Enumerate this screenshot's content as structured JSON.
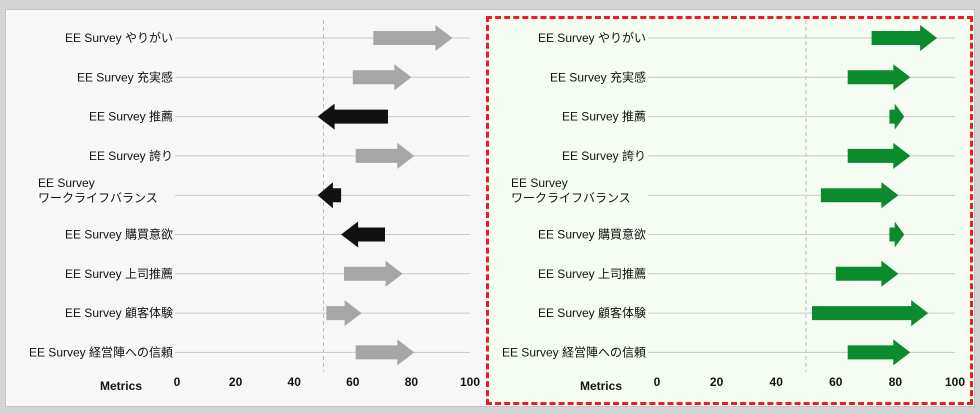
{
  "chart_data": [
    {
      "type": "arrow-range",
      "ylabel": "Metrics",
      "xlim": [
        0,
        100
      ],
      "xticks": [
        0,
        20,
        40,
        60,
        80,
        100
      ],
      "reference_x": 50,
      "categories": [
        [
          "EE Survey やりがい"
        ],
        [
          "EE Survey 充実感"
        ],
        [
          "EE Survey 推薦"
        ],
        [
          "EE Survey 誇り"
        ],
        [
          "EE Survey",
          "ワークライフバランス"
        ],
        [
          "EE Survey 購買意欲"
        ],
        [
          "EE Survey 上司推薦"
        ],
        [
          "EE Survey 顧客体験"
        ],
        [
          "EE Survey 経営陣への信頼"
        ]
      ],
      "arrows": [
        {
          "from": 67,
          "to": 94,
          "color": "#a6a6a6"
        },
        {
          "from": 60,
          "to": 80,
          "color": "#a6a6a6"
        },
        {
          "from": 72,
          "to": 48,
          "color": "#111111"
        },
        {
          "from": 61,
          "to": 81,
          "color": "#a6a6a6"
        },
        {
          "from": 56,
          "to": 48,
          "color": "#111111"
        },
        {
          "from": 71,
          "to": 56,
          "color": "#111111"
        },
        {
          "from": 57,
          "to": 77,
          "color": "#a6a6a6"
        },
        {
          "from": 51,
          "to": 63,
          "color": "#a6a6a6"
        },
        {
          "from": 61,
          "to": 81,
          "color": "#a6a6a6"
        }
      ]
    },
    {
      "type": "arrow-range",
      "ylabel": "Metrics",
      "xlim": [
        0,
        100
      ],
      "xticks": [
        0,
        20,
        40,
        60,
        80,
        100
      ],
      "reference_x": 50,
      "highlighted": true,
      "categories": [
        [
          "EE Survey やりがい"
        ],
        [
          "EE Survey 充実感"
        ],
        [
          "EE Survey 推薦"
        ],
        [
          "EE Survey 誇り"
        ],
        [
          "EE Survey",
          "ワークライフバランス"
        ],
        [
          "EE Survey 購買意欲"
        ],
        [
          "EE Survey 上司推薦"
        ],
        [
          "EE Survey 顧客体験"
        ],
        [
          "EE Survey 経営陣への信頼"
        ]
      ],
      "arrows": [
        {
          "from": 72,
          "to": 94,
          "color": "#0b8a2e"
        },
        {
          "from": 64,
          "to": 85,
          "color": "#0b8a2e"
        },
        {
          "from": 78,
          "to": 83,
          "color": "#0b8a2e"
        },
        {
          "from": 64,
          "to": 85,
          "color": "#0b8a2e"
        },
        {
          "from": 55,
          "to": 81,
          "color": "#0b8a2e"
        },
        {
          "from": 78,
          "to": 83,
          "color": "#0b8a2e"
        },
        {
          "from": 60,
          "to": 81,
          "color": "#0b8a2e"
        },
        {
          "from": 52,
          "to": 91,
          "color": "#0b8a2e"
        },
        {
          "from": 64,
          "to": 85,
          "color": "#0b8a2e"
        }
      ]
    }
  ]
}
